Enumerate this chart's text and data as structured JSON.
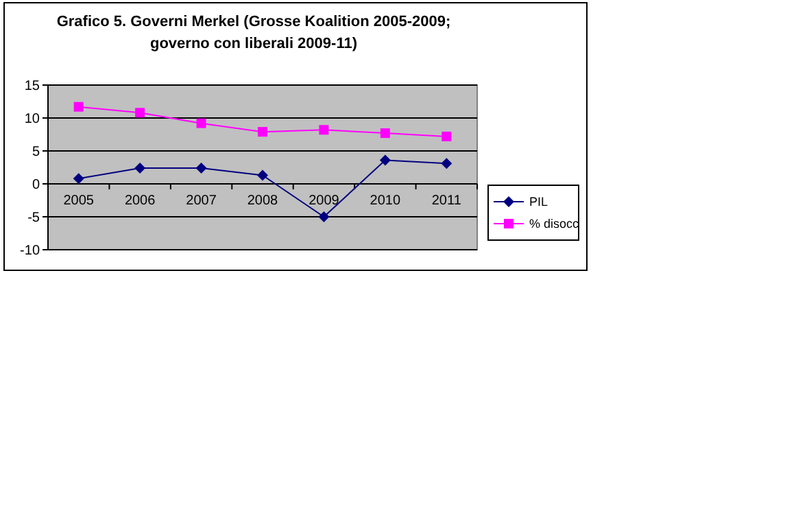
{
  "chart_data": {
    "type": "line",
    "title": "Grafico 5. Governi Merkel (Grosse Koalition 2005-2009; governo con liberali 2009-11)",
    "categories": [
      "2005",
      "2006",
      "2007",
      "2008",
      "2009",
      "2010",
      "2011"
    ],
    "series": [
      {
        "name": "PIL",
        "color": "#000080",
        "marker": "diamond",
        "values": [
          0.8,
          2.4,
          2.4,
          1.3,
          -5.0,
          3.6,
          3.1
        ]
      },
      {
        "name": "% disocc",
        "color": "#ff00ff",
        "marker": "square",
        "values": [
          11.7,
          10.8,
          9.2,
          7.9,
          8.2,
          7.7,
          7.2
        ]
      }
    ],
    "ylim": [
      -10,
      15
    ],
    "yticks": [
      -10,
      -5,
      0,
      5,
      10,
      15
    ],
    "grid": "y",
    "legend": "right"
  }
}
